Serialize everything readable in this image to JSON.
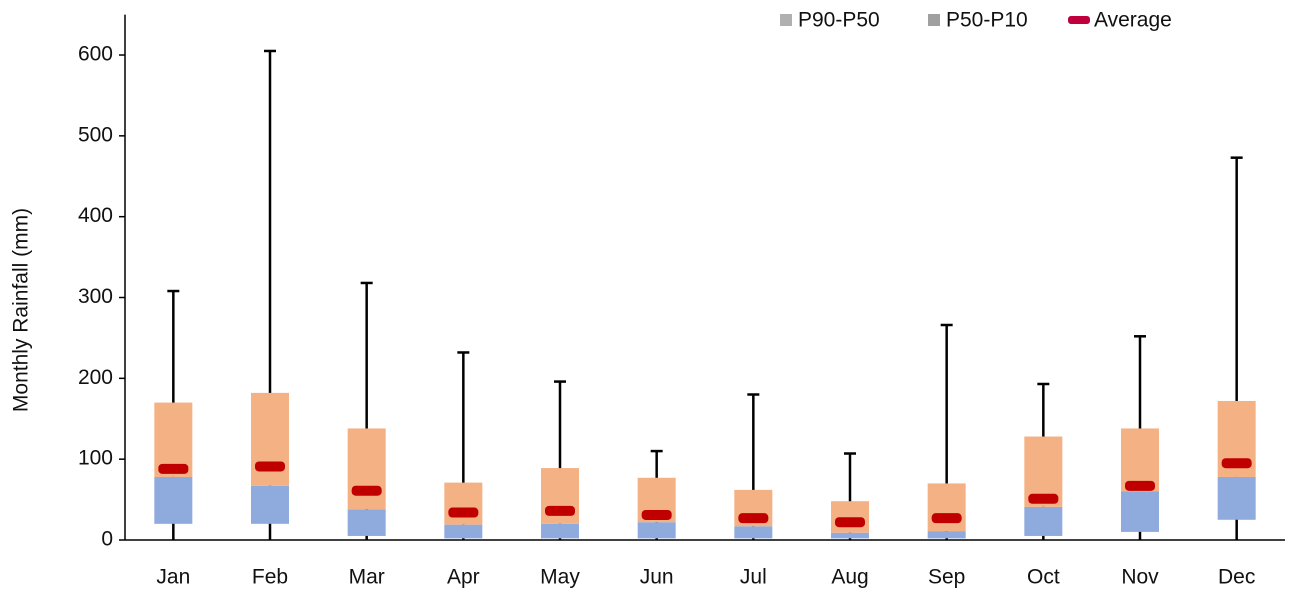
{
  "chart_data": {
    "type": "box",
    "y_label": "Monthly Rainfall (mm)",
    "categories": [
      "Jan",
      "Feb",
      "Mar",
      "Apr",
      "May",
      "Jun",
      "Jul",
      "Aug",
      "Sep",
      "Oct",
      "Nov",
      "Dec"
    ],
    "p10": [
      20,
      20,
      5,
      2,
      2,
      2,
      2,
      2,
      2,
      5,
      10,
      25
    ],
    "p50": [
      78,
      67,
      38,
      19,
      20,
      22,
      17,
      9,
      11,
      41,
      60,
      78
    ],
    "p90": [
      170,
      182,
      138,
      71,
      89,
      77,
      62,
      48,
      70,
      128,
      138,
      172
    ],
    "average": [
      88,
      91,
      61,
      34,
      36,
      31,
      27,
      22,
      27,
      51,
      67,
      95
    ],
    "min": [
      0,
      0,
      0,
      0,
      0,
      0,
      0,
      0,
      0,
      0,
      0,
      0
    ],
    "max": [
      308,
      605,
      318,
      232,
      196,
      110,
      180,
      107,
      266,
      193,
      252,
      473
    ],
    "colors": {
      "upper": "#f4b183",
      "lower": "#8faadc",
      "average": "#c00000",
      "whisker": "#000000"
    },
    "legend": [
      {
        "name": "P90-P50",
        "color": "#b0b0b0"
      },
      {
        "name": "P50-P10",
        "color": "#a0a0a0"
      },
      {
        "name": "Average",
        "color": "#c0003c"
      }
    ],
    "ylim": [
      0,
      650
    ],
    "yticks": [
      0,
      100,
      200,
      300,
      400,
      500,
      600
    ]
  }
}
